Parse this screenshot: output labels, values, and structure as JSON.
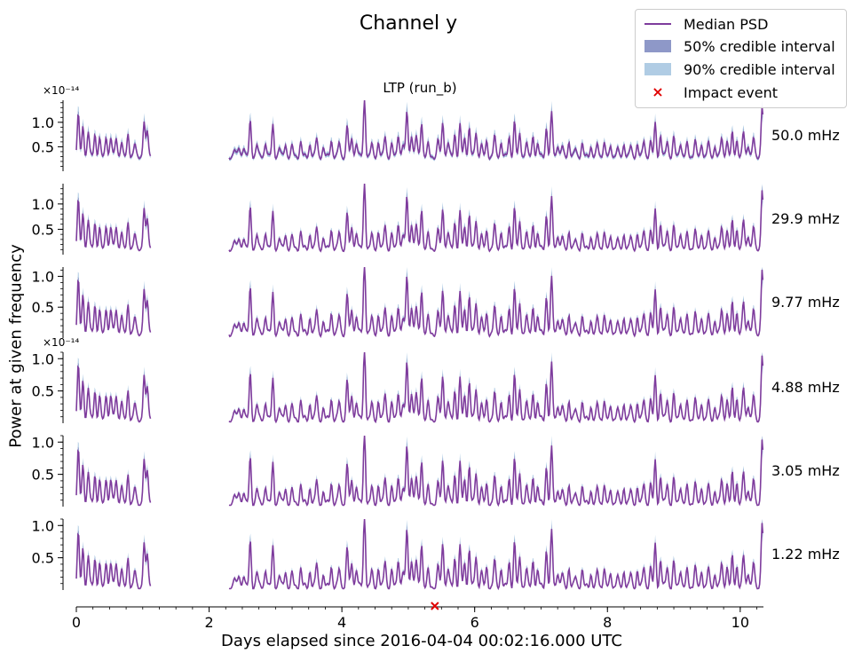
{
  "figure": {
    "title": "Channel y",
    "subtitle": "LTP (run_b)",
    "xlabel": "Days elapsed since 2016-04-04 00:02:16.000 UTC",
    "ylabel": "Power at given frequency"
  },
  "legend": {
    "items": [
      {
        "label": "Median PSD",
        "kind": "line"
      },
      {
        "label": "50% credible interval",
        "kind": "band50"
      },
      {
        "label": "90% credible interval",
        "kind": "band90"
      },
      {
        "label": "Impact event",
        "kind": "marker"
      }
    ]
  },
  "colors": {
    "median": "#7e3c9d",
    "band50": "#8e98c8",
    "band90": "#b0cce4",
    "impact": "#e00000",
    "axis": "#000000"
  },
  "chart_data": {
    "type": "line",
    "x_range": [
      0,
      10.35
    ],
    "x_ticks": [
      0,
      2,
      4,
      6,
      8,
      10
    ],
    "x_tick_labels": [
      "0",
      "2",
      "4",
      "6",
      "8",
      "10"
    ],
    "gap": [
      1.12,
      2.3
    ],
    "impact_event_day": 5.4,
    "peaks": [
      {
        "x": 0.03,
        "h": 1.0
      },
      {
        "x": 0.1,
        "h": 0.75
      },
      {
        "x": 0.18,
        "h": 0.6
      },
      {
        "x": 0.28,
        "h": 0.55
      },
      {
        "x": 0.35,
        "h": 0.42
      },
      {
        "x": 0.45,
        "h": 0.5
      },
      {
        "x": 0.52,
        "h": 0.45
      },
      {
        "x": 0.6,
        "h": 0.48
      },
      {
        "x": 0.68,
        "h": 0.35
      },
      {
        "x": 0.78,
        "h": 0.55
      },
      {
        "x": 0.88,
        "h": 0.3
      },
      {
        "x": 1.02,
        "h": 0.85
      },
      {
        "x": 1.07,
        "h": 0.6
      },
      {
        "x": 2.38,
        "h": 0.18
      },
      {
        "x": 2.45,
        "h": 0.22
      },
      {
        "x": 2.52,
        "h": 0.25
      },
      {
        "x": 2.62,
        "h": 0.85
      },
      {
        "x": 2.72,
        "h": 0.3
      },
      {
        "x": 2.85,
        "h": 0.35
      },
      {
        "x": 2.96,
        "h": 0.75
      },
      {
        "x": 3.06,
        "h": 0.22
      },
      {
        "x": 3.15,
        "h": 0.3
      },
      {
        "x": 3.25,
        "h": 0.25
      },
      {
        "x": 3.38,
        "h": 0.35
      },
      {
        "x": 3.52,
        "h": 0.3
      },
      {
        "x": 3.62,
        "h": 0.45
      },
      {
        "x": 3.72,
        "h": 0.2
      },
      {
        "x": 3.84,
        "h": 0.4
      },
      {
        "x": 3.96,
        "h": 0.35
      },
      {
        "x": 4.08,
        "h": 0.75
      },
      {
        "x": 4.15,
        "h": 0.45
      },
      {
        "x": 4.22,
        "h": 0.35
      },
      {
        "x": 4.34,
        "h": 1.38
      },
      {
        "x": 4.45,
        "h": 0.3
      },
      {
        "x": 4.55,
        "h": 0.35
      },
      {
        "x": 4.65,
        "h": 0.5
      },
      {
        "x": 4.75,
        "h": 0.3
      },
      {
        "x": 4.85,
        "h": 0.55
      },
      {
        "x": 4.92,
        "h": 0.3
      },
      {
        "x": 4.98,
        "h": 1.1
      },
      {
        "x": 5.05,
        "h": 0.55
      },
      {
        "x": 5.12,
        "h": 0.5
      },
      {
        "x": 5.2,
        "h": 0.85
      },
      {
        "x": 5.3,
        "h": 0.3
      },
      {
        "x": 5.45,
        "h": 0.4
      },
      {
        "x": 5.52,
        "h": 0.85
      },
      {
        "x": 5.6,
        "h": 0.35
      },
      {
        "x": 5.7,
        "h": 0.55
      },
      {
        "x": 5.78,
        "h": 0.75
      },
      {
        "x": 5.85,
        "h": 0.45
      },
      {
        "x": 5.92,
        "h": 0.7
      },
      {
        "x": 6.02,
        "h": 0.6
      },
      {
        "x": 6.1,
        "h": 0.3
      },
      {
        "x": 6.18,
        "h": 0.35
      },
      {
        "x": 6.3,
        "h": 0.5
      },
      {
        "x": 6.4,
        "h": 0.35
      },
      {
        "x": 6.52,
        "h": 0.45
      },
      {
        "x": 6.6,
        "h": 0.85
      },
      {
        "x": 6.68,
        "h": 0.55
      },
      {
        "x": 6.78,
        "h": 0.35
      },
      {
        "x": 6.88,
        "h": 0.5
      },
      {
        "x": 6.95,
        "h": 0.3
      },
      {
        "x": 7.08,
        "h": 0.7
      },
      {
        "x": 7.16,
        "h": 1.05
      },
      {
        "x": 7.25,
        "h": 0.3
      },
      {
        "x": 7.32,
        "h": 0.25
      },
      {
        "x": 7.42,
        "h": 0.35
      },
      {
        "x": 7.52,
        "h": 0.2
      },
      {
        "x": 7.62,
        "h": 0.3
      },
      {
        "x": 7.75,
        "h": 0.25
      },
      {
        "x": 7.85,
        "h": 0.3
      },
      {
        "x": 7.95,
        "h": 0.35
      },
      {
        "x": 8.05,
        "h": 0.25
      },
      {
        "x": 8.15,
        "h": 0.2
      },
      {
        "x": 8.25,
        "h": 0.3
      },
      {
        "x": 8.35,
        "h": 0.25
      },
      {
        "x": 8.45,
        "h": 0.3
      },
      {
        "x": 8.55,
        "h": 0.4
      },
      {
        "x": 8.65,
        "h": 0.35
      },
      {
        "x": 8.72,
        "h": 0.8
      },
      {
        "x": 8.8,
        "h": 0.5
      },
      {
        "x": 8.9,
        "h": 0.4
      },
      {
        "x": 9.0,
        "h": 0.45
      },
      {
        "x": 9.1,
        "h": 0.35
      },
      {
        "x": 9.2,
        "h": 0.3
      },
      {
        "x": 9.32,
        "h": 0.4
      },
      {
        "x": 9.42,
        "h": 0.3
      },
      {
        "x": 9.52,
        "h": 0.35
      },
      {
        "x": 9.62,
        "h": 0.25
      },
      {
        "x": 9.72,
        "h": 0.45
      },
      {
        "x": 9.8,
        "h": 0.4
      },
      {
        "x": 9.88,
        "h": 0.55
      },
      {
        "x": 9.95,
        "h": 0.4
      },
      {
        "x": 10.05,
        "h": 0.6
      },
      {
        "x": 10.12,
        "h": 0.3
      },
      {
        "x": 10.2,
        "h": 0.45
      },
      {
        "x": 10.33,
        "h": 1.25
      }
    ],
    "panels": [
      {
        "freq": "50.0 mHz",
        "offset": "×10⁻¹⁴",
        "ylim": [
          0,
          1.45
        ],
        "yticks": [
          0.5,
          1.0
        ],
        "ytick_labels": [
          "0.5",
          "1.0"
        ],
        "base": 0.3,
        "scale": 0.85
      },
      {
        "freq": "29.9 mHz",
        "offset": "",
        "ylim": [
          0,
          1.4
        ],
        "yticks": [
          0.5,
          1.0
        ],
        "ytick_labels": [
          "0.5",
          "1.0"
        ],
        "base": 0.12,
        "scale": 0.95
      },
      {
        "freq": "9.77 mHz",
        "offset": "",
        "ylim": [
          0,
          1.15
        ],
        "yticks": [
          0.5,
          1.0
        ],
        "ytick_labels": [
          "0.5",
          "1.0"
        ],
        "base": 0.08,
        "scale": 0.85
      },
      {
        "freq": "4.88 mHz",
        "offset": "×10⁻¹⁴",
        "ylim": [
          0,
          1.1
        ],
        "yticks": [
          0.5,
          1.0
        ],
        "ytick_labels": [
          "0.5",
          "1.0"
        ],
        "base": 0.06,
        "scale": 0.82
      },
      {
        "freq": "3.05 mHz",
        "offset": "",
        "ylim": [
          0,
          1.1
        ],
        "yticks": [
          0.5,
          1.0
        ],
        "ytick_labels": [
          "0.5",
          "1.0"
        ],
        "base": 0.05,
        "scale": 0.82
      },
      {
        "freq": "1.22 mHz",
        "offset": "",
        "ylim": [
          0,
          1.1
        ],
        "yticks": [
          0.5,
          1.0
        ],
        "ytick_labels": [
          "0.5",
          "1.0"
        ],
        "base": 0.05,
        "scale": 0.82
      }
    ]
  }
}
